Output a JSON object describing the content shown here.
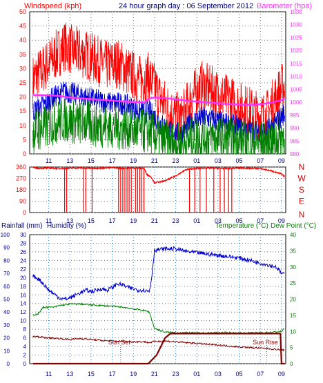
{
  "panels": {
    "top": {
      "windspeed_label": "Windspeed (kph)",
      "title": "24 hour graph day : 06 September 2012",
      "barometer_label": "Barometer (hpa)"
    },
    "bottom": {
      "rainfall_label": "Rainfall (mm)",
      "humidity_label": "Humidity (%)",
      "temperature_label": "Temperature (°C)",
      "dewpoint_label": "Dew Point (°C)",
      "sunset_label": "Sun Set",
      "sunrise_label": "Sun Rise"
    }
  },
  "colors": {
    "background": "#ffffff",
    "plot_area": "#ffffff",
    "grid": "#3a7ac0",
    "windspeed": "#ff0000",
    "wind_average": "#0000cc",
    "wind_low": "#008000",
    "barometer": "#ff33ff",
    "direction": "#ff0000",
    "rainfall": "#800000",
    "humidity": "#0000cc",
    "temperature": "#008000",
    "dewpoint": "#800000",
    "left_axis_text": "#000080",
    "right_axis_text": "#008000",
    "red_text": "#ff0000",
    "compass": "#cc0000"
  },
  "chart_data": [
    {
      "type": "line",
      "panel": "wind-barometer",
      "x_tick_labels": [
        "11",
        "13",
        "15",
        "17",
        "19",
        "21",
        "23",
        "01",
        "03",
        "05",
        "07",
        "09"
      ],
      "x_tick_hours": [
        11,
        13,
        15,
        17,
        19,
        21,
        23,
        25,
        27,
        29,
        31,
        33
      ],
      "xlim_hours": [
        9.2,
        33.4
      ],
      "left_axis": {
        "label": "Windspeed (kph)",
        "ylim": [
          0,
          50
        ],
        "ticks": [
          "0",
          "5",
          "10",
          "15",
          "20",
          "25",
          "30",
          "35",
          "40",
          "45",
          "50"
        ]
      },
      "right_axis": {
        "label": "Barometer (hpa)",
        "ylim": [
          980,
          1035
        ],
        "ticks": [
          "980",
          "985",
          "990",
          "995",
          "1000",
          "1005",
          "1010",
          "1015",
          "1020",
          "1025",
          "1030",
          "1035"
        ]
      },
      "series": [
        {
          "name": "Windspeed (kph)",
          "axis": "left",
          "style": "gust",
          "x": [
            9.5,
            10.5,
            11.5,
            12.5,
            13.5,
            14.5,
            15.5,
            16.5,
            17.5,
            18.5,
            19.5,
            20.5,
            21.5,
            22.5,
            23.5,
            24.5,
            25.5,
            26.5,
            27.5,
            28.5,
            29.5,
            30.5,
            31.5,
            32.5,
            33.2
          ],
          "y": [
            26,
            30,
            34,
            38,
            36,
            35,
            33,
            31,
            32,
            29,
            26,
            27,
            20,
            15,
            12,
            20,
            24,
            22,
            20,
            18,
            16,
            14,
            13,
            20,
            24
          ]
        },
        {
          "axis": "left",
          "style": "average",
          "x": [
            9.5,
            10.5,
            11.5,
            12.5,
            13.5,
            14.5,
            15.5,
            16.5,
            17.5,
            18.5,
            19.5,
            20.5,
            21.5,
            22.5,
            23.5,
            24.5,
            25.5,
            26.5,
            27.5,
            28.5,
            29.5,
            30.5,
            31.5,
            32.5,
            33.2
          ],
          "y": [
            15,
            17,
            20,
            22,
            21,
            20,
            19,
            18,
            18,
            17,
            15,
            15,
            11,
            8,
            7,
            11,
            13,
            12,
            11,
            10,
            9,
            8,
            8,
            11,
            14
          ]
        },
        {
          "axis": "left",
          "style": "low",
          "x": [
            9.5,
            10.5,
            11.5,
            12.5,
            13.5,
            14.5,
            15.5,
            16.5,
            17.5,
            18.5,
            19.5,
            20.5,
            21.5,
            22.5,
            23.5,
            24.5,
            25.5,
            26.5,
            27.5,
            28.5,
            29.5,
            30.5,
            31.5,
            32.5,
            33.2
          ],
          "y": [
            8,
            9,
            11,
            12,
            11,
            11,
            10,
            10,
            9,
            9,
            8,
            8,
            5,
            4,
            3,
            5,
            6,
            6,
            5,
            5,
            4,
            4,
            4,
            5,
            7
          ]
        },
        {
          "name": "Barometer (hpa)",
          "axis": "right",
          "x": [
            9.5,
            11,
            12,
            13,
            14,
            15,
            16,
            17,
            18,
            19,
            20,
            20.5,
            21,
            22,
            23,
            24,
            25,
            26,
            27,
            28,
            29,
            30,
            31,
            32,
            33,
            33.3
          ],
          "y": [
            1002.8,
            1002.7,
            1002.4,
            1001.8,
            1001.5,
            1001.2,
            1000.9,
            1000.6,
            1000.3,
            1000.1,
            999.9,
            1001.4,
            1001.8,
            1001.6,
            1001.1,
            1000.6,
            1000.2,
            999.9,
            999.6,
            999.3,
            999.1,
            999.0,
            999.2,
            999.8,
            1000.8,
            1001.5
          ]
        }
      ]
    },
    {
      "type": "scatter",
      "panel": "wind-direction",
      "ylim": [
        0,
        360
      ],
      "y_ticks": [
        "0",
        "90",
        "180",
        "270",
        "360"
      ],
      "compass_labels": [
        "N",
        "W",
        "S",
        "E",
        "N"
      ],
      "xlim_hours": [
        9.2,
        33.4
      ],
      "series": [
        {
          "style": "direction",
          "x": [
            9.5,
            10,
            11,
            12,
            13,
            14,
            15,
            16,
            17,
            18,
            19,
            20,
            20.3,
            20.7,
            21,
            22,
            23,
            24,
            25,
            26,
            27,
            28,
            29,
            30,
            31,
            32,
            33,
            33.2
          ],
          "y": [
            355,
            350,
            352,
            348,
            350,
            353,
            350,
            352,
            355,
            350,
            352,
            350,
            300,
            280,
            235,
            250,
            290,
            340,
            350,
            352,
            350,
            348,
            352,
            350,
            348,
            330,
            305,
            290
          ]
        }
      ],
      "north_drops_hours": [
        12.5,
        12.7,
        14.3,
        14.5,
        15.1,
        17.6,
        17.8,
        18.0,
        18.2,
        18.4,
        18.6,
        18.8,
        19.2,
        19.4,
        19.6,
        19.8,
        20.0,
        24.3,
        24.8,
        25.3,
        25.9,
        26.6,
        27.2,
        27.6,
        28.0,
        28.3
      ]
    },
    {
      "type": "line",
      "panel": "temperature-humidity-rain",
      "xlim_hours": [
        9.2,
        33.4
      ],
      "axes": [
        {
          "label": "Humidity (%)",
          "ylim": [
            0,
            100
          ],
          "ticks": [
            "0",
            "10",
            "20",
            "30",
            "40",
            "50",
            "60",
            "70",
            "80",
            "90",
            "100"
          ]
        },
        {
          "label": "Rainfall (mm)",
          "ylim": [
            0,
            30
          ],
          "ticks": [
            "0",
            "2",
            "4",
            "6",
            "8",
            "10",
            "12",
            "14",
            "16",
            "18",
            "20",
            "22",
            "24",
            "26",
            "28",
            "30"
          ]
        },
        {
          "label": "Temperature (°C)",
          "ylim": [
            0,
            40
          ],
          "ticks": [
            "0",
            "5",
            "10",
            "15",
            "20",
            "25",
            "30",
            "35",
            "40"
          ]
        }
      ],
      "series": [
        {
          "name": "Humidity (%)",
          "axis": "humidity",
          "x": [
            9.5,
            10,
            10.5,
            11,
            11.5,
            12,
            12.5,
            13,
            13.5,
            14,
            14.5,
            15,
            15.5,
            16,
            16.5,
            17,
            17.5,
            18,
            18.5,
            19,
            19.5,
            20,
            20.5,
            20.7,
            21,
            22,
            23,
            24,
            25,
            26,
            27,
            28,
            29,
            30,
            31,
            32,
            32.5,
            33,
            33.3
          ],
          "y": [
            68,
            66,
            62,
            57,
            54,
            51,
            50,
            51,
            53,
            55,
            57,
            56,
            57,
            58,
            57,
            59,
            62,
            61,
            59,
            58,
            57,
            57,
            56,
            65,
            88,
            89,
            89,
            87,
            86,
            85,
            84,
            83,
            82,
            80,
            78,
            76,
            75,
            70,
            69
          ]
        },
        {
          "name": "Temperature (°C)",
          "axis": "temperature",
          "x": [
            9.5,
            10,
            10.5,
            11,
            11.5,
            12,
            13,
            14,
            15,
            16,
            17,
            18,
            19,
            20,
            20.5,
            20.7,
            21,
            21.5,
            22,
            23,
            24,
            25,
            26,
            27,
            28,
            29,
            30,
            31,
            32,
            33,
            33.3
          ],
          "y": [
            15,
            15.5,
            17.5,
            17.5,
            17.5,
            18,
            18.5,
            18.5,
            18.2,
            18,
            17.8,
            17.5,
            17,
            16.5,
            16,
            14,
            11,
            10.3,
            9.8,
            9.6,
            9.6,
            9.5,
            9.5,
            9.6,
            9.6,
            9.5,
            9.5,
            9.6,
            9.7,
            10,
            11
          ]
        },
        {
          "name": "Dew Point (°C)",
          "axis": "temperature",
          "x": [
            9.5,
            10,
            11,
            12,
            13,
            14,
            15,
            16,
            17,
            18,
            19,
            20,
            20.5,
            21,
            22,
            23,
            24,
            25,
            26,
            27,
            28,
            29,
            30,
            31,
            32,
            33,
            33.3
          ],
          "y": [
            8.5,
            8.3,
            8.0,
            7.8,
            7.5,
            7.8,
            7.5,
            7.2,
            7.0,
            6.9,
            6.8,
            6.8,
            6.5,
            6.9,
            7,
            6.8,
            6.5,
            6.3,
            6.0,
            5.8,
            5.5,
            5.2,
            5.0,
            4.8,
            4.6,
            4.3,
            4.2
          ]
        },
        {
          "name": "Rainfall (mm)",
          "axis": "rain",
          "x": [
            9.5,
            20.4,
            21.2,
            21.6,
            22,
            22.5,
            23,
            24,
            25,
            26,
            27,
            28,
            29,
            30,
            31,
            32,
            32.9,
            33,
            33.3
          ],
          "y": [
            0,
            0,
            2,
            4,
            6,
            7,
            7,
            7,
            7,
            7,
            7,
            7,
            7,
            7,
            7,
            7,
            7,
            0,
            0
          ]
        }
      ],
      "annotations": [
        {
          "text": "Sun Set",
          "x_hour": 17.8
        },
        {
          "text": "Sun Rise",
          "x_hour": 31.6
        }
      ]
    }
  ]
}
